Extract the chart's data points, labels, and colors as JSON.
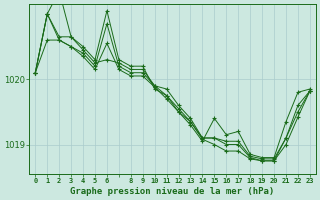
{
  "background_color": "#cce8e0",
  "plot_bg_color": "#cce8e0",
  "grid_color": "#aacccc",
  "line_color": "#1a6b1a",
  "marker_color": "#1a6b1a",
  "xlabel": "Graphe pression niveau de la mer (hPa)",
  "x_labels": [
    "0",
    "1",
    "2",
    "3",
    "4",
    "5",
    "6",
    "",
    "8",
    "9",
    "10",
    "11",
    "12",
    "13",
    "14",
    "15",
    "16",
    "17",
    "18",
    "19",
    "20",
    "21",
    "22",
    "23"
  ],
  "x_values": [
    0,
    1,
    2,
    3,
    4,
    5,
    6,
    7,
    8,
    9,
    10,
    11,
    12,
    13,
    14,
    15,
    16,
    17,
    18,
    19,
    20,
    21,
    22,
    23
  ],
  "ylim": [
    1018.55,
    1021.15
  ],
  "yticks": [
    1019,
    1020
  ],
  "series": [
    [
      1020.1,
      1021.0,
      1021.35,
      1020.65,
      1020.5,
      1020.3,
      1021.05,
      1020.3,
      1020.2,
      1020.2,
      1019.85,
      1019.75,
      1019.5,
      1019.3,
      1019.05,
      1019.4,
      1019.15,
      1019.2,
      1018.85,
      1018.8,
      1018.8,
      1019.35,
      1019.8,
      1019.85
    ],
    [
      1020.1,
      1021.0,
      1020.65,
      1020.65,
      1020.45,
      1020.25,
      1020.3,
      1020.25,
      1020.15,
      1020.15,
      1019.9,
      1019.85,
      1019.6,
      1019.4,
      1019.1,
      1019.1,
      1019.05,
      1019.05,
      1018.82,
      1018.78,
      1018.78,
      1019.1,
      1019.5,
      1019.82
    ],
    [
      1020.1,
      1021.0,
      1020.6,
      1020.5,
      1020.35,
      1020.15,
      1020.55,
      1020.15,
      1020.05,
      1020.05,
      1019.88,
      1019.7,
      1019.5,
      1019.35,
      1019.08,
      1019.0,
      1018.9,
      1018.9,
      1018.78,
      1018.75,
      1018.75,
      1019.0,
      1019.42,
      1019.82
    ],
    [
      1020.1,
      1020.6,
      1020.6,
      1020.5,
      1020.4,
      1020.2,
      1020.85,
      1020.2,
      1020.1,
      1020.1,
      1019.9,
      1019.75,
      1019.55,
      1019.35,
      1019.1,
      1019.1,
      1019.0,
      1019.0,
      1018.8,
      1018.75,
      1018.75,
      1019.1,
      1019.6,
      1019.82
    ]
  ]
}
